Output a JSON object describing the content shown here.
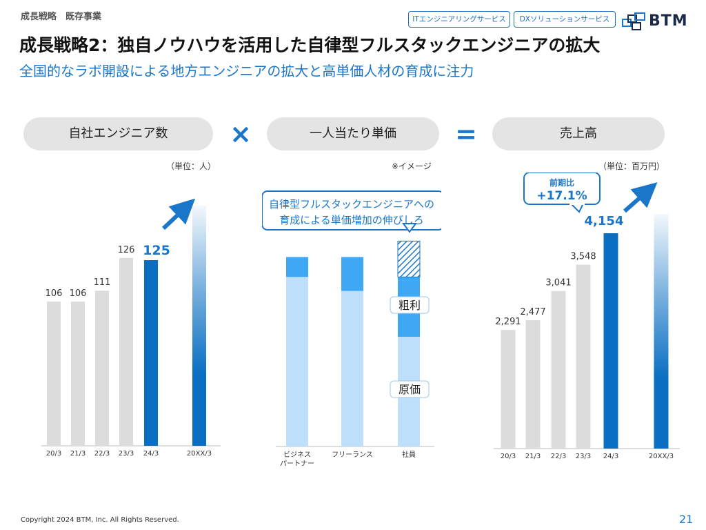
{
  "header": {
    "breadcrumb": "成長戦略　既存事業",
    "title": "成長戦略2：独自ノウハウを活用した自律型フルスタックエンジニアの拡大",
    "subtitle": "全国的なラボ開設による地方エンジニアの拡大と高単価人材の育成に注力",
    "tags": [
      "ITエンジニアリングサービス",
      "DXソリューションサービス"
    ],
    "logo": "BTM"
  },
  "equation": {
    "left": "自社エンジニア数",
    "times": "×",
    "middle": "一人当たり単価",
    "equals": "=",
    "right": "売上高"
  },
  "colors": {
    "gray": "#dcdcdc",
    "blue": "#0a6fc2",
    "light_blue": "#bfe0fb",
    "mid_blue": "#3ea8f4",
    "accent": "#1a76c8"
  },
  "chart_data": [
    {
      "type": "bar",
      "unit_note": "（単位：人）",
      "categories": [
        "20/3",
        "21/3",
        "22/3",
        "23/3",
        "24/3",
        "20XX/3"
      ],
      "values": [
        106,
        106,
        111,
        126,
        125,
        null
      ],
      "value_labels": [
        "106",
        "106",
        "111",
        "126",
        "125",
        ""
      ],
      "highlight": [
        false,
        false,
        false,
        false,
        true,
        true
      ],
      "future_index": 5
    },
    {
      "type": "bar",
      "note": "※イメージ",
      "callout": [
        "自律型フルスタックエンジニアへの",
        "育成による単価増加の伸びしろ"
      ],
      "categories": [
        [
          "ビジネス",
          "パートナー"
        ],
        [
          "フリーランス"
        ],
        [
          "社員"
        ]
      ],
      "series": [
        {
          "name": "原価",
          "values": [
            0.85,
            0.78,
            0.55
          ]
        },
        {
          "name": "粗利",
          "values": [
            0.1,
            0.17,
            0.3
          ]
        },
        {
          "name": "伸びしろ",
          "values": [
            0,
            0,
            0.18
          ]
        }
      ],
      "segment_labels": {
        "cost": "原価",
        "profit": "粗利"
      }
    },
    {
      "type": "bar",
      "unit_note": "（単位：百万円）",
      "categories": [
        "20/3",
        "21/3",
        "22/3",
        "23/3",
        "24/3",
        "20XX/3"
      ],
      "values": [
        2291,
        2477,
        3041,
        3548,
        4154,
        null
      ],
      "value_labels": [
        "2,291",
        "2,477",
        "3,041",
        "3,548",
        "4,154",
        ""
      ],
      "highlight": [
        false,
        false,
        false,
        false,
        true,
        true
      ],
      "future_index": 5,
      "badge": {
        "title": "前期比",
        "value": "+17.1%"
      }
    }
  ],
  "footer": {
    "copyright": "Copyright 2024 BTM, Inc. All Rights Reserved.",
    "page": "21"
  }
}
